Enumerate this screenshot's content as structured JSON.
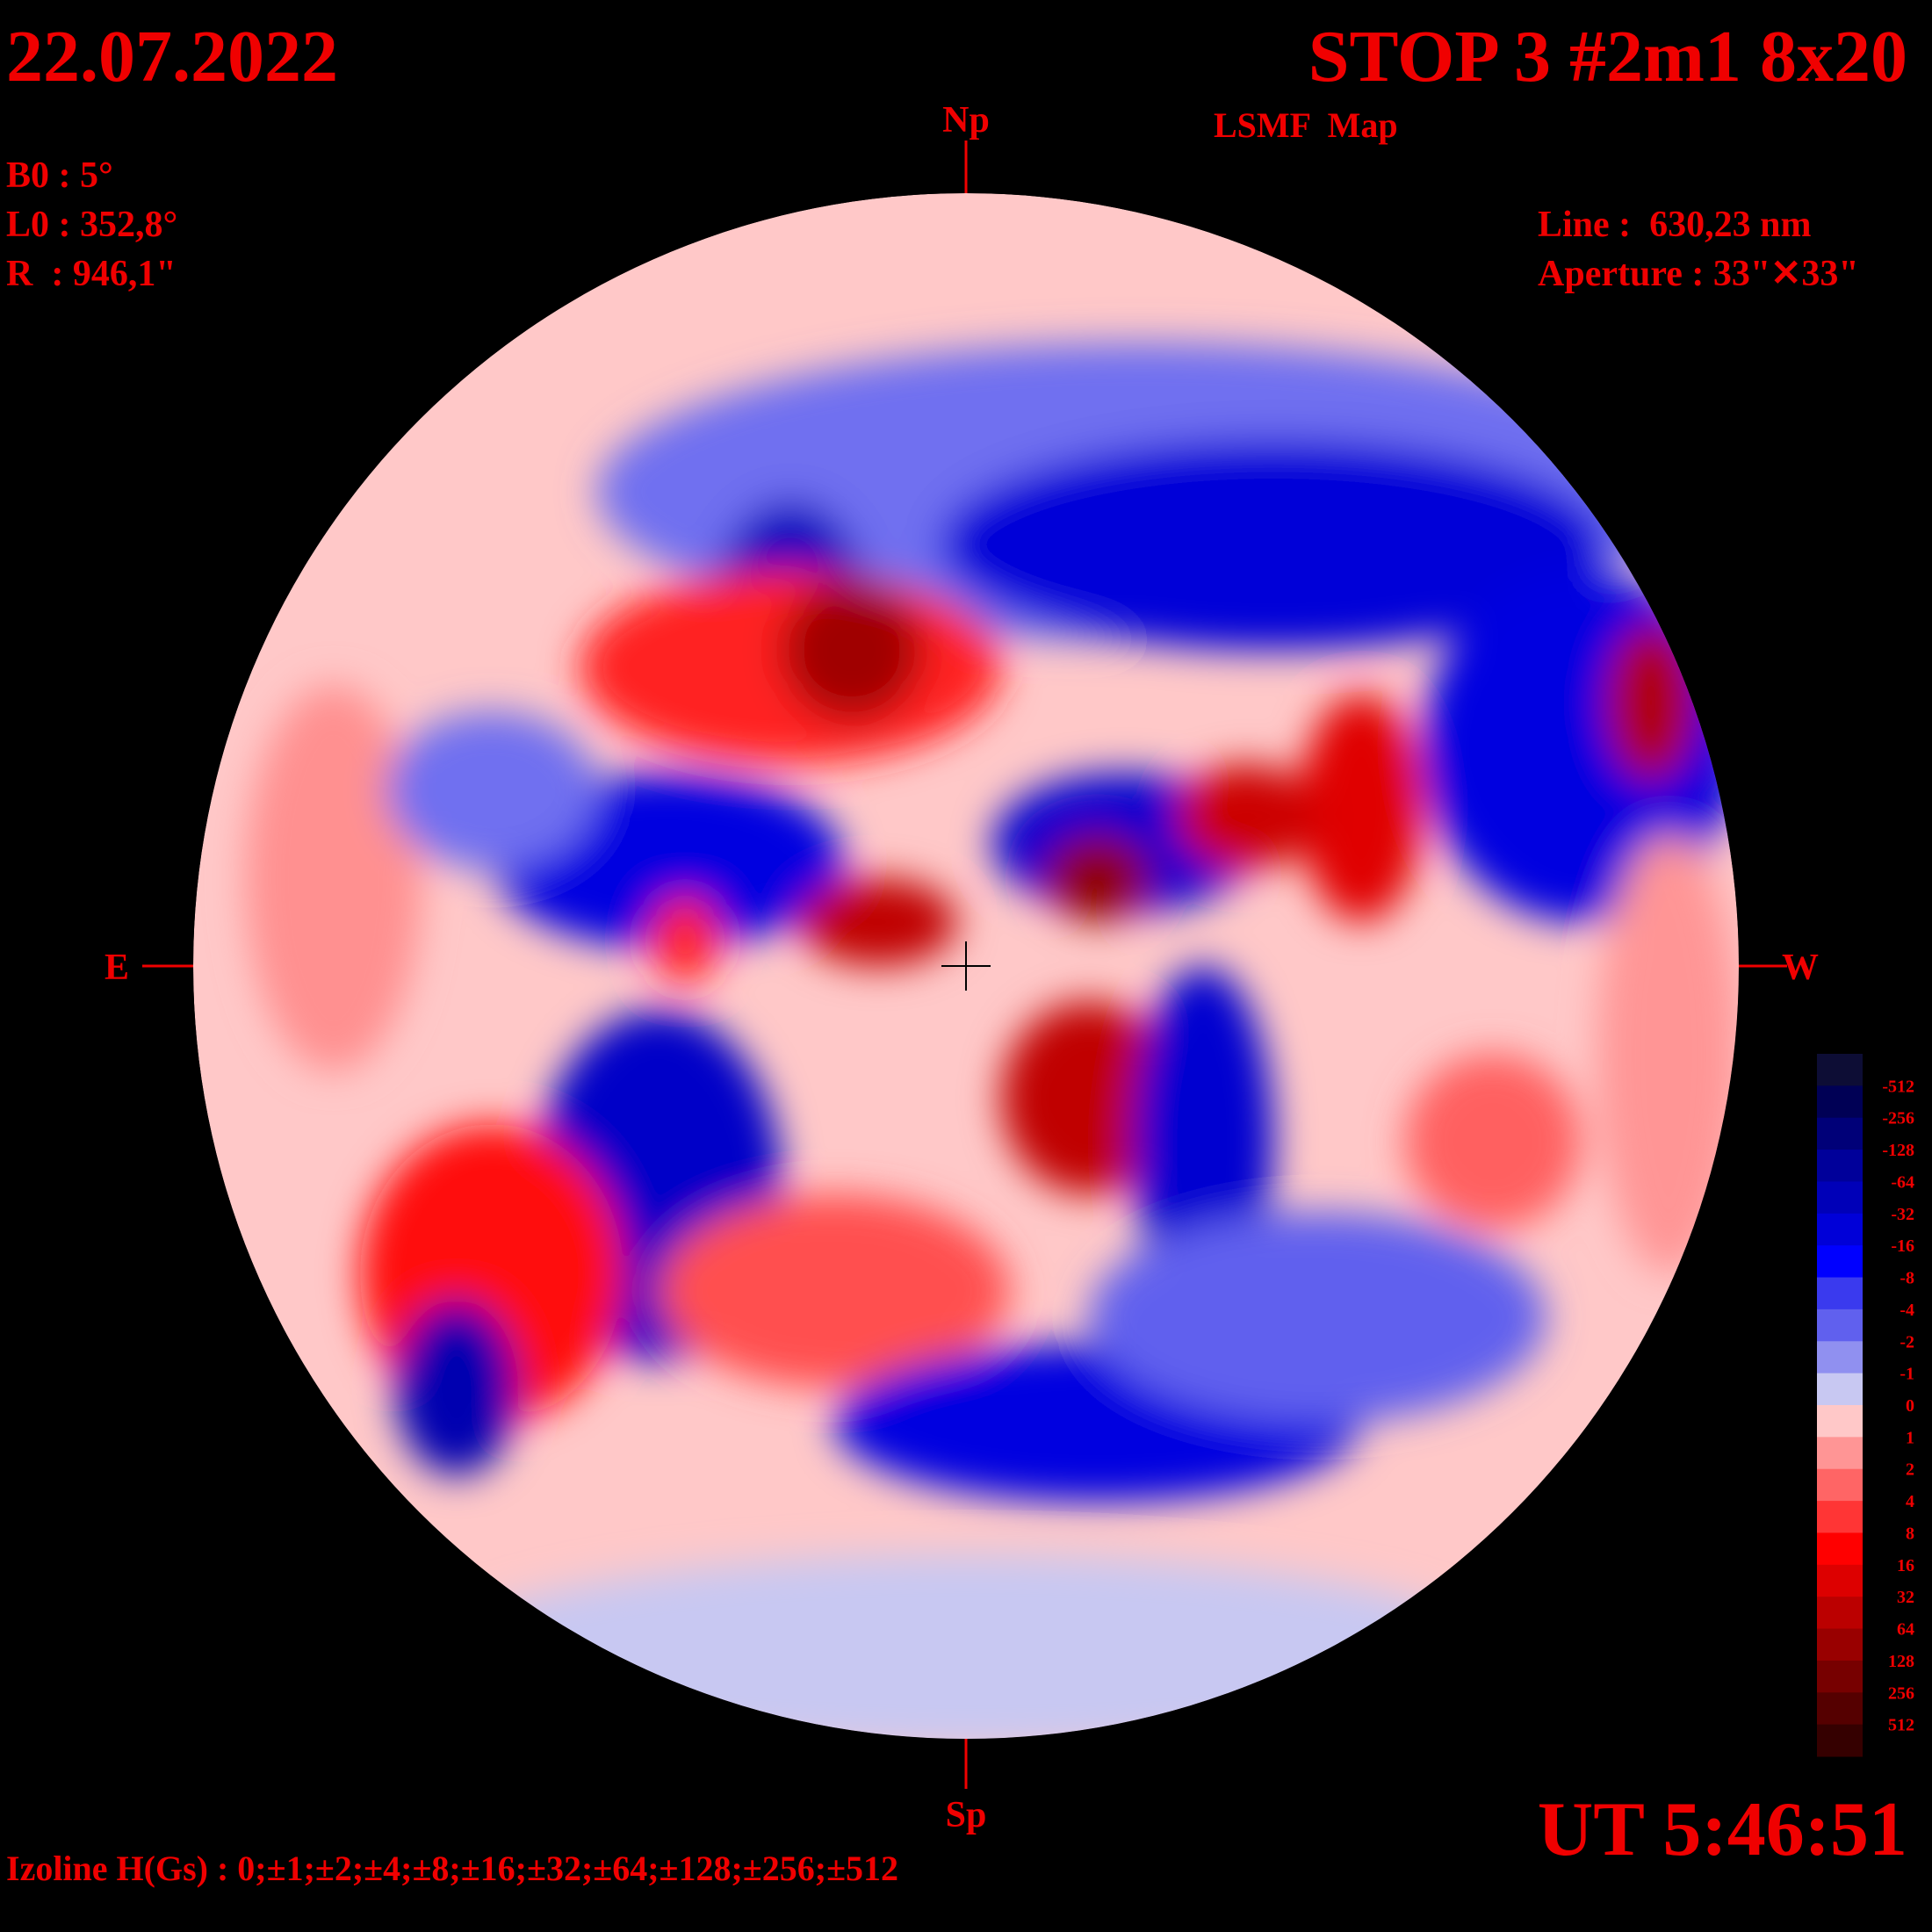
{
  "header": {
    "date": "22.07.2022",
    "title": "STOP 3 #2m1 8x20",
    "subtitle": "LSMF  Map"
  },
  "parameters": [
    "B0 : 5°",
    "L0 : 352,8°",
    "R  : 946,1\""
  ],
  "instrument": [
    "Line :  630,23 nm",
    "Aperture : 33\"✕33\""
  ],
  "directions": {
    "north": "Np",
    "south": "Sp",
    "east": "E",
    "west": "W"
  },
  "colorbar": {
    "levels": [
      -512,
      -256,
      -128,
      -64,
      -32,
      -16,
      -8,
      -4,
      -2,
      -1,
      0,
      1,
      2,
      4,
      8,
      16,
      32,
      64,
      128,
      256,
      512
    ],
    "colors": [
      "#0d0d35",
      "#000055",
      "#000078",
      "#00009a",
      "#0000b8",
      "#0000d8",
      "#0000ff",
      "#3a3aee",
      "#6060ee",
      "#9090f0",
      "#c8c8f2",
      "#ffc8c8",
      "#ff9595",
      "#ff6565",
      "#ff3535",
      "#ff0000",
      "#dd0000",
      "#bb0000",
      "#990000",
      "#770000",
      "#550000",
      "#350000"
    ]
  },
  "footer": {
    "isolines": "Izoline H(Gs) : 0;±1;±2;±4;±8;±16;±32;±64;±128;±256;±512",
    "time": "UT 5:46:51"
  }
}
